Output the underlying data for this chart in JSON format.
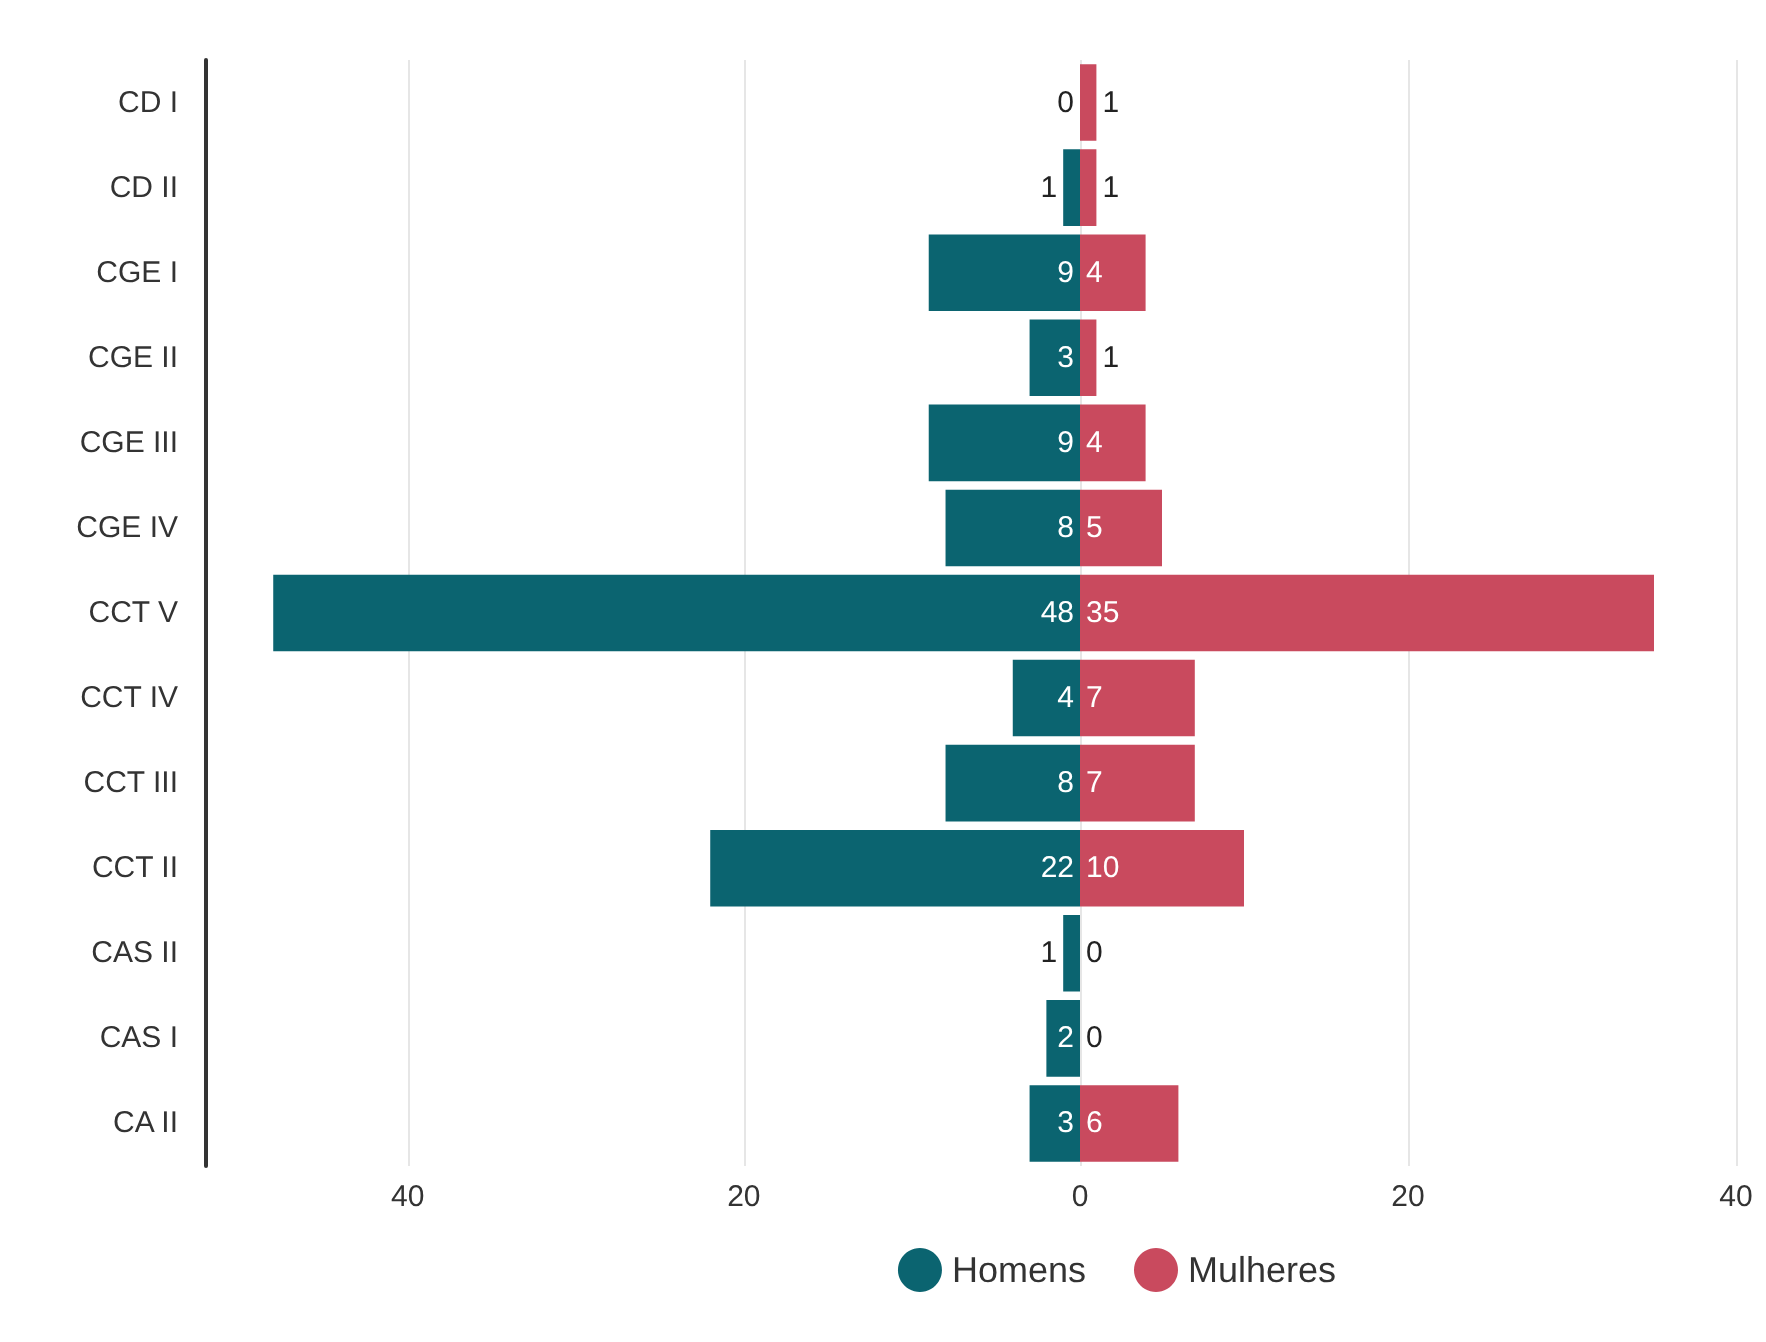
{
  "chart_data": [
    {
      "type": "bar",
      "orientation": "horizontal",
      "categories": [
        "CD I",
        "CD II",
        "CGE I",
        "CGE II",
        "CGE III",
        "CGE IV",
        "CCT V",
        "CCT IV",
        "CCT III",
        "CCT II",
        "CAS II",
        "CAS I",
        "CA II"
      ],
      "series": [
        {
          "name": "Homens",
          "color": "#0b6470",
          "values": [
            0,
            1,
            9,
            3,
            9,
            8,
            48,
            4,
            8,
            22,
            1,
            2,
            3
          ]
        }
      ],
      "xlim": [
        52,
        0
      ],
      "xticks": [
        40,
        20,
        0
      ],
      "data_labels": true,
      "grid": "x",
      "legend": "bottom right"
    },
    {
      "type": "bar",
      "orientation": "horizontal",
      "categories": [
        null,
        null,
        null,
        null,
        null,
        null,
        null,
        null,
        null,
        null,
        null,
        null,
        null
      ],
      "series": [
        {
          "name": "Mulheres",
          "color": "#c94a5e",
          "values": [
            1,
            1,
            4,
            1,
            4,
            5,
            35,
            7,
            7,
            10,
            0,
            0,
            6
          ]
        }
      ],
      "xlim": [
        0,
        40
      ],
      "xticks": [
        20,
        40
      ],
      "data_labels": true,
      "grid": "x",
      "legend": "bottom left",
      "tick_labels": "x"
    }
  ]
}
